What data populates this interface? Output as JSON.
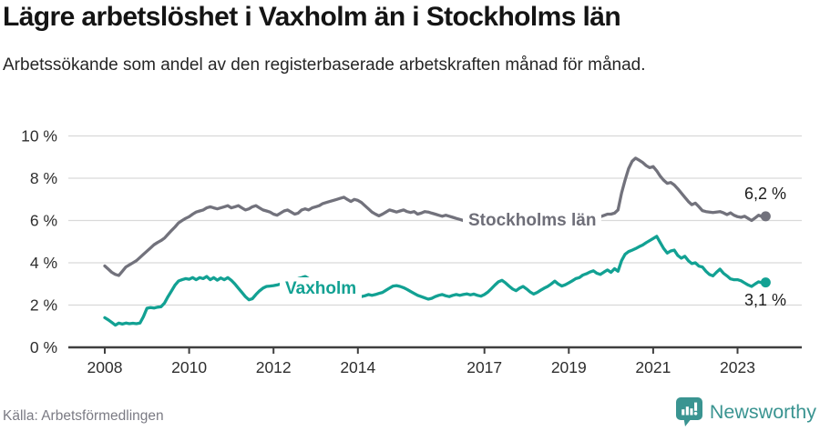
{
  "header": {
    "title": "Lägre arbetslöshet i Vaxholm än i Stockholms län",
    "subtitle": "Arbetssökande som andel av den registerbaserade arbetskraften månad för månad."
  },
  "chart_data": {
    "type": "line",
    "title": "Lägre arbetslöshet i Vaxholm än i Stockholms län",
    "subtitle": "Arbetssökande som andel av den registerbaserade arbetskraften månad för månad.",
    "x_unit": "month",
    "x_start": 2008,
    "x_ticks": [
      2008,
      2010,
      2012,
      2014,
      2017,
      2019,
      2021,
      2023
    ],
    "y_ticks": [
      0,
      2,
      4,
      6,
      8,
      10
    ],
    "y_tick_suffix": " %",
    "ylim": [
      0,
      10
    ],
    "grid": true,
    "grid_color": "#d9d9d9",
    "axis_color": "#3f3f3f",
    "series": [
      {
        "name": "Stockholms län",
        "color": "#72727c",
        "end_label": "6,2 %",
        "end_value": 6.2,
        "values": [
          3.85,
          3.7,
          3.55,
          3.45,
          3.4,
          3.6,
          3.8,
          3.9,
          4.0,
          4.1,
          4.25,
          4.4,
          4.55,
          4.7,
          4.85,
          4.96,
          5.05,
          5.17,
          5.35,
          5.53,
          5.7,
          5.89,
          6.0,
          6.1,
          6.18,
          6.3,
          6.4,
          6.45,
          6.5,
          6.6,
          6.65,
          6.6,
          6.55,
          6.6,
          6.65,
          6.7,
          6.6,
          6.65,
          6.7,
          6.6,
          6.5,
          6.55,
          6.65,
          6.7,
          6.6,
          6.5,
          6.45,
          6.4,
          6.3,
          6.25,
          6.35,
          6.45,
          6.5,
          6.4,
          6.3,
          6.35,
          6.5,
          6.55,
          6.5,
          6.6,
          6.65,
          6.7,
          6.8,
          6.85,
          6.9,
          6.95,
          7.0,
          7.05,
          7.1,
          7.0,
          6.9,
          7.0,
          6.95,
          6.85,
          6.7,
          6.55,
          6.4,
          6.3,
          6.22,
          6.3,
          6.4,
          6.5,
          6.45,
          6.4,
          6.45,
          6.5,
          6.42,
          6.38,
          6.42,
          6.3,
          6.35,
          6.42,
          6.4,
          6.35,
          6.3,
          6.25,
          6.2,
          6.25,
          6.2,
          6.15,
          6.1,
          6.05,
          6.0,
          6.02,
          6.05,
          6.0,
          5.98,
          6.0,
          6.02,
          6.0,
          5.96,
          5.95,
          6.0,
          6.05,
          6.08,
          6.02,
          5.98,
          6.0,
          6.04,
          6.08,
          6.02,
          5.98,
          5.94,
          5.9,
          5.94,
          6.0,
          6.04,
          6.0,
          5.96,
          5.92,
          5.96,
          6.0,
          6.0,
          6.04,
          6.08,
          6.1,
          6.14,
          6.18,
          6.22,
          6.18,
          6.14,
          6.18,
          6.24,
          6.3,
          6.3,
          6.35,
          6.5,
          7.3,
          7.9,
          8.45,
          8.8,
          8.95,
          8.85,
          8.75,
          8.6,
          8.5,
          8.55,
          8.35,
          8.1,
          7.9,
          7.76,
          7.8,
          7.68,
          7.5,
          7.3,
          7.1,
          6.9,
          6.75,
          6.82,
          6.65,
          6.47,
          6.42,
          6.4,
          6.38,
          6.4,
          6.42,
          6.36,
          6.28,
          6.36,
          6.25,
          6.18,
          6.15,
          6.2,
          6.1,
          6.0,
          6.12,
          6.25,
          6.18,
          6.2
        ]
      },
      {
        "name": "Vaxholm",
        "color": "#12a193",
        "end_label": "3,1 %",
        "end_value": 3.1,
        "values": [
          1.4,
          1.3,
          1.18,
          1.05,
          1.15,
          1.1,
          1.15,
          1.12,
          1.14,
          1.12,
          1.15,
          1.45,
          1.85,
          1.88,
          1.86,
          1.9,
          1.92,
          2.1,
          2.4,
          2.67,
          2.95,
          3.14,
          3.2,
          3.25,
          3.22,
          3.3,
          3.2,
          3.3,
          3.25,
          3.35,
          3.2,
          3.3,
          3.18,
          3.28,
          3.2,
          3.3,
          3.17,
          3.0,
          2.8,
          2.6,
          2.4,
          2.25,
          2.3,
          2.5,
          2.67,
          2.8,
          2.88,
          2.9,
          2.92,
          2.95,
          3.0,
          3.05,
          3.1,
          3.15,
          3.2,
          3.25,
          3.3,
          3.35,
          3.25,
          3.15,
          3.05,
          2.95,
          2.85,
          2.75,
          2.68,
          2.62,
          2.56,
          2.5,
          2.46,
          2.44,
          2.42,
          2.4,
          2.44,
          2.4,
          2.44,
          2.5,
          2.46,
          2.5,
          2.55,
          2.6,
          2.7,
          2.8,
          2.9,
          2.92,
          2.88,
          2.82,
          2.74,
          2.64,
          2.55,
          2.46,
          2.4,
          2.34,
          2.28,
          2.32,
          2.4,
          2.46,
          2.5,
          2.44,
          2.4,
          2.46,
          2.5,
          2.46,
          2.5,
          2.53,
          2.48,
          2.52,
          2.46,
          2.42,
          2.5,
          2.62,
          2.78,
          2.95,
          3.1,
          3.17,
          3.05,
          2.9,
          2.76,
          2.68,
          2.8,
          2.88,
          2.76,
          2.62,
          2.52,
          2.6,
          2.7,
          2.8,
          2.88,
          3.0,
          3.13,
          3.0,
          2.9,
          2.96,
          3.05,
          3.15,
          3.25,
          3.3,
          3.42,
          3.48,
          3.56,
          3.62,
          3.5,
          3.45,
          3.56,
          3.66,
          3.55,
          3.72,
          3.6,
          4.1,
          4.4,
          4.53,
          4.6,
          4.67,
          4.76,
          4.84,
          4.95,
          5.05,
          5.15,
          5.25,
          4.96,
          4.67,
          4.46,
          4.56,
          4.6,
          4.35,
          4.22,
          4.31,
          4.1,
          3.96,
          4.0,
          3.84,
          3.8,
          3.6,
          3.45,
          3.38,
          3.55,
          3.7,
          3.5,
          3.38,
          3.24,
          3.2,
          3.2,
          3.15,
          3.05,
          2.95,
          2.88,
          3.0,
          3.1,
          3.05,
          3.07
        ]
      }
    ]
  },
  "footer": {
    "source": "Källa: Arbetsförmedlingen",
    "brand": "Newsworthy",
    "brand_color": "#3a9491"
  }
}
